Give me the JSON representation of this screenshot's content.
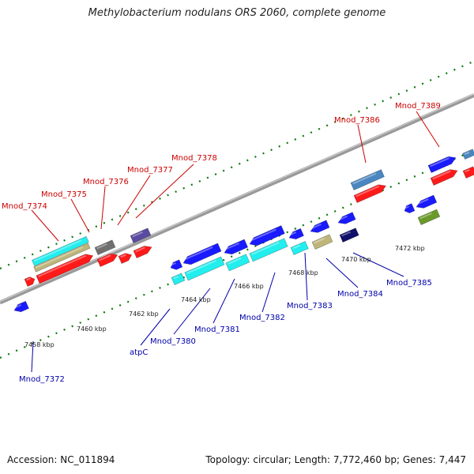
{
  "title": "Methylobacterium nodulans ORS 2060, complete genome",
  "footer": {
    "accession": "Accession: NC_011894",
    "topology": "Topology: circular; Length: 7,772,460 bp; Genes: 7,447"
  },
  "colors": {
    "backbone": "#8a8a8a",
    "plus_label": "#cc0000",
    "minus_label": "#0000aa",
    "tick": "#0a7a0a",
    "red": "#ff1a1a",
    "blue": "#1a1aff",
    "cyan": "#22eeee",
    "khaki": "#bdb57a",
    "gray": "#707070",
    "slate": "#5a4aa0",
    "steel": "#4a86c0",
    "olive": "#6b9a2a",
    "navy": "#10106a"
  },
  "scale_labels": [
    "7458 kbp",
    "7460 kbp",
    "7462 kbp",
    "7464 kbp",
    "7466 kbp",
    "7468 kbp",
    "7470 kbp",
    "7472 kbp"
  ],
  "plus_strand_labels": [
    "Mnod_7374",
    "Mnod_7375",
    "Mnod_7376",
    "Mnod_7377",
    "Mnod_7378",
    "Mnod_7386",
    "Mnod_7389"
  ],
  "minus_strand_labels": [
    "Mnod_7372",
    "atpC",
    "Mnod_7380",
    "Mnod_7381",
    "Mnod_7382",
    "Mnod_7383",
    "Mnod_7384",
    "Mnod_7385"
  ]
}
